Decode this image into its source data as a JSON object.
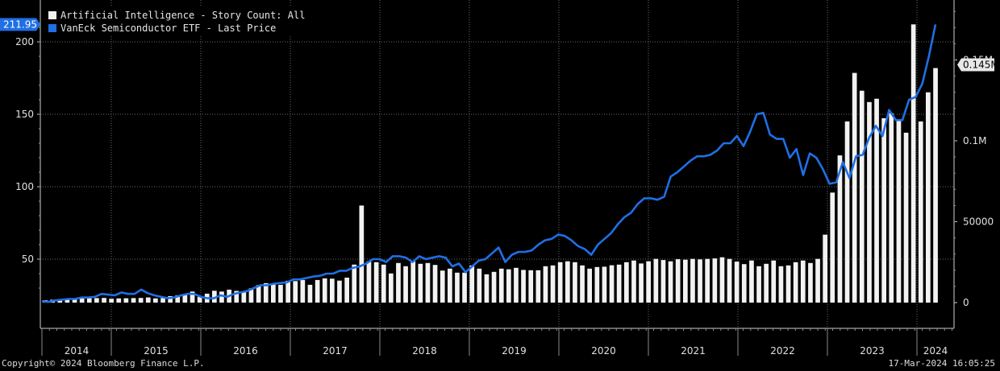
{
  "chart_data": {
    "type": "bar",
    "x_axis": {
      "years": [
        "2014",
        "2015",
        "2016",
        "2017",
        "2018",
        "2019",
        "2020",
        "2021",
        "2022",
        "2023",
        "2024"
      ]
    },
    "left_axis": {
      "ticks": [
        "50",
        "100",
        "150",
        "200"
      ],
      "range": [
        20,
        220
      ]
    },
    "right_axis": {
      "ticks": [
        "0",
        "50000",
        "0.1M",
        "0.15M"
      ],
      "range": [
        0,
        180000
      ]
    },
    "grid": true,
    "legend_position": "top-left",
    "series": [
      {
        "name": "Artificial Intelligence - Story Count: All",
        "kind": "bar",
        "axis": "right",
        "color": "#f2f2f2",
        "last_value_label": "0.145M",
        "values": [
          1500,
          1800,
          2000,
          2200,
          2500,
          2600,
          2700,
          2800,
          2900,
          2400,
          2600,
          2700,
          2800,
          2900,
          3200,
          2600,
          2800,
          4000,
          4500,
          4800,
          6800,
          3600,
          5500,
          7300,
          6800,
          8000,
          7200,
          6500,
          8800,
          10800,
          12000,
          11500,
          11000,
          13500,
          13300,
          14000,
          11000,
          14000,
          15000,
          14800,
          13600,
          15400,
          23500,
          60000,
          25500,
          25000,
          23500,
          18000,
          24500,
          22500,
          25500,
          24000,
          24500,
          23300,
          19800,
          21000,
          18500,
          18500,
          23000,
          21000,
          17500,
          19000,
          21000,
          20600,
          21500,
          20200,
          20000,
          20000,
          22500,
          23000,
          25000,
          25500,
          25000,
          23000,
          21000,
          22000,
          22200,
          23100,
          23500,
          25000,
          26000,
          24200,
          25500,
          27000,
          26300,
          25500,
          26800,
          26500,
          27000,
          26700,
          27000,
          27300,
          28000,
          27000,
          25300,
          23800,
          26000,
          22500,
          24000,
          26000,
          22500,
          23000,
          25000,
          26000,
          24500,
          27000,
          42000,
          68000,
          91000,
          112000,
          142000,
          131000,
          124000,
          126000,
          114000,
          117000,
          113000,
          105000,
          172000,
          112000,
          130000,
          145000
        ]
      },
      {
        "name": "VanEck Semiconductor ETF - Last Price",
        "kind": "line",
        "axis": "left",
        "color": "#1f6fe5",
        "last_value_label": "211.95",
        "values": [
          21,
          20.5,
          21.5,
          22,
          22.5,
          22.5,
          23.5,
          23.5,
          24,
          26,
          25.5,
          25,
          27,
          26,
          26,
          29,
          26.5,
          25,
          24,
          23,
          23.5,
          25,
          26,
          26,
          24,
          23,
          23,
          25,
          24,
          26,
          27,
          28,
          30,
          32,
          32,
          33,
          33.5,
          34,
          36,
          36,
          37,
          38,
          38.5,
          40,
          40,
          42,
          42,
          44,
          45,
          47,
          50,
          50,
          48,
          52,
          52,
          51,
          48,
          52,
          50,
          51,
          52,
          51,
          45,
          47,
          41,
          45,
          49,
          50,
          54,
          58,
          48,
          53,
          55,
          55,
          56,
          60,
          63,
          64,
          67,
          66,
          63,
          59,
          57,
          53,
          60,
          64,
          68,
          74,
          79,
          82,
          88,
          92,
          92,
          91,
          93,
          107,
          110,
          114,
          118,
          121,
          121,
          122,
          125,
          130,
          130,
          135,
          128,
          138,
          150,
          151,
          136,
          133,
          133,
          120,
          126,
          108,
          123,
          120,
          112,
          102,
          103,
          117,
          106,
          121,
          122,
          134,
          142,
          135,
          153,
          146,
          146,
          160,
          162,
          171,
          190,
          212
        ]
      }
    ]
  },
  "footer": {
    "copyright": "Copyright© 2024 Bloomberg Finance L.P.",
    "timestamp": "17-Mar-2024 16:05:25"
  },
  "colors": {
    "background": "#000000",
    "grid": "#6a6a6a",
    "line_label_bg": "#1f6fe5",
    "bar_label_bg": "#e8e8e8"
  }
}
